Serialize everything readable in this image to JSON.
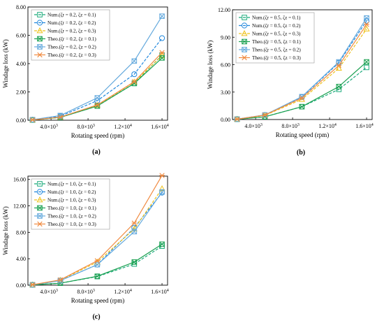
{
  "chart_data": [
    {
      "type": "line",
      "panel_label": "(a)",
      "xlabel": "Rotating speed (rpm)",
      "ylabel": "Windage loss (kW)",
      "xlim": [
        1500,
        16600
      ],
      "ylim": [
        0,
        8
      ],
      "xticks": [
        {
          "v": 4000,
          "m": "4.0×10",
          "e": "3"
        },
        {
          "v": 8000,
          "m": "8.0×10",
          "e": "3"
        },
        {
          "v": 12000,
          "m": "1.2×10",
          "e": "4"
        },
        {
          "v": 16000,
          "m": "1.6×10",
          "e": "4"
        }
      ],
      "yticks": [
        {
          "v": 0,
          "t": "0.00"
        },
        {
          "v": 2,
          "t": "2.00"
        },
        {
          "v": 4,
          "t": "4.00"
        },
        {
          "v": 6,
          "t": "6.00"
        },
        {
          "v": 8,
          "t": "8.00"
        }
      ],
      "x": [
        2000,
        5000,
        9000,
        13000,
        16000
      ],
      "legend_position": "top-left",
      "series": [
        {
          "name": "Num.(ζr = 0.2, ζz = 0.1)",
          "color": "#1aaa7a",
          "marker": "square",
          "dash": "4,2",
          "values": [
            0.02,
            0.2,
            1.0,
            2.6,
            4.6
          ]
        },
        {
          "name": "Num.(ζr = 0.2, ζz = 0.2)",
          "color": "#2288dd",
          "marker": "circle",
          "dash": "4,2",
          "values": [
            0.03,
            0.28,
            1.38,
            3.25,
            5.8
          ]
        },
        {
          "name": "Num.(ζr = 0.2, ζz = 0.3)",
          "color": "#eec21c",
          "marker": "triangle",
          "dash": "4,2",
          "values": [
            0.02,
            0.2,
            1.05,
            2.7,
            4.55
          ]
        },
        {
          "name": "Theo.(ζr = 0.2, ζz = 0.1)",
          "color": "#1aa050",
          "marker": "xbox",
          "dash": "",
          "values": [
            0.02,
            0.2,
            1.0,
            2.6,
            4.4
          ]
        },
        {
          "name": "Theo.(ζr = 0.2, ζz = 0.2)",
          "color": "#66aadd",
          "marker": "xbox",
          "dash": "",
          "values": [
            0.04,
            0.33,
            1.58,
            4.18,
            7.35
          ]
        },
        {
          "name": "Theo.(ζr = 0.2, ζz = 0.3)",
          "color": "#f08a40",
          "marker": "asterisk",
          "dash": "",
          "values": [
            0.02,
            0.22,
            1.08,
            2.72,
            4.78
          ]
        }
      ]
    },
    {
      "type": "line",
      "panel_label": "(b)",
      "xlabel": "Rotating speed (rpm)",
      "ylabel": "Windage loss (kW)",
      "xlim": [
        1500,
        16600
      ],
      "ylim": [
        0,
        12
      ],
      "xticks": [
        {
          "v": 4000,
          "m": "4.0×10",
          "e": "3"
        },
        {
          "v": 8000,
          "m": "8.0×10",
          "e": "3"
        },
        {
          "v": 12000,
          "m": "1.2×10",
          "e": "4"
        },
        {
          "v": 16000,
          "m": "1.6×10",
          "e": "4"
        }
      ],
      "yticks": [
        {
          "v": 0,
          "t": "0.00"
        },
        {
          "v": 3,
          "t": "3.00"
        },
        {
          "v": 6,
          "t": "6.00"
        },
        {
          "v": 9,
          "t": "9.00"
        },
        {
          "v": 12,
          "t": "12.00"
        }
      ],
      "x": [
        2000,
        5000,
        9000,
        13000,
        16000
      ],
      "legend_position": "top-left",
      "series": [
        {
          "name": "Num.(ζr = 0.5, ζz = 0.1)",
          "color": "#1aaa7a",
          "marker": "square",
          "dash": "4,2",
          "values": [
            0.03,
            0.3,
            1.4,
            3.3,
            5.7
          ]
        },
        {
          "name": "Num.(ζr = 0.5, ζz = 0.2)",
          "color": "#2288dd",
          "marker": "circle",
          "dash": "4,2",
          "values": [
            0.04,
            0.5,
            2.45,
            6.2,
            10.8
          ]
        },
        {
          "name": "Num.(ζr = 0.5, ζz = 0.3)",
          "color": "#eec21c",
          "marker": "triangle",
          "dash": "4,2",
          "values": [
            0.04,
            0.45,
            2.2,
            5.6,
            9.9
          ]
        },
        {
          "name": "Theo.(ζr = 0.5, ζz = 0.1)",
          "color": "#1aa050",
          "marker": "xbox",
          "dash": "",
          "values": [
            0.03,
            0.3,
            1.4,
            3.6,
            6.3
          ]
        },
        {
          "name": "Theo.(ζr = 0.5, ζz = 0.2)",
          "color": "#66aadd",
          "marker": "xbox",
          "dash": "",
          "values": [
            0.04,
            0.5,
            2.5,
            6.3,
            11.1
          ]
        },
        {
          "name": "Theo.(ζr = 0.5, ζz = 0.3)",
          "color": "#f08a40",
          "marker": "asterisk",
          "dash": "",
          "values": [
            0.04,
            0.48,
            2.35,
            5.9,
            10.4
          ]
        }
      ]
    },
    {
      "type": "line",
      "panel_label": "(c)",
      "xlabel": "Rotating speed (rpm)",
      "ylabel": "Windage loss (kW)",
      "xlim": [
        1500,
        16600
      ],
      "ylim": [
        0,
        16.5
      ],
      "xticks": [
        {
          "v": 4000,
          "m": "4.0×10",
          "e": "3"
        },
        {
          "v": 8000,
          "m": "8.0×10",
          "e": "3"
        },
        {
          "v": 12000,
          "m": "1.2×10",
          "e": "4"
        },
        {
          "v": 16000,
          "m": "1.6×10",
          "e": "4"
        }
      ],
      "yticks": [
        {
          "v": 0,
          "t": "0.00"
        },
        {
          "v": 4,
          "t": "4.00"
        },
        {
          "v": 8,
          "t": "8.00"
        },
        {
          "v": 12,
          "t": "12.00"
        },
        {
          "v": 16,
          "t": "16.00"
        }
      ],
      "x": [
        2000,
        5000,
        9000,
        13000,
        16000
      ],
      "legend_position": "top-left",
      "series": [
        {
          "name": "Num.(ζr = 1.0, ζz = 0.1)",
          "color": "#1aaa7a",
          "marker": "square",
          "dash": "4,2",
          "values": [
            0.04,
            0.3,
            1.3,
            3.2,
            5.9
          ]
        },
        {
          "name": "Num.(ζr = 1.0, ζz = 0.2)",
          "color": "#2288dd",
          "marker": "circle",
          "dash": "4,2",
          "values": [
            0.05,
            0.7,
            3.1,
            8.7,
            14.0
          ]
        },
        {
          "name": "Num.(ζr = 1.0, ζz = 0.3)",
          "color": "#eec21c",
          "marker": "triangle",
          "dash": "4,2",
          "values": [
            0.06,
            0.75,
            3.5,
            8.5,
            14.6
          ]
        },
        {
          "name": "Theo.(ζr = 1.0, ζz = 0.1)",
          "color": "#1aa050",
          "marker": "xbox",
          "dash": "",
          "values": [
            0.04,
            0.3,
            1.35,
            3.5,
            6.2
          ]
        },
        {
          "name": "Theo.(ζr = 1.0, ζz = 0.2)",
          "color": "#66aadd",
          "marker": "xbox",
          "dash": "",
          "values": [
            0.05,
            0.68,
            3.1,
            8.1,
            14.1
          ]
        },
        {
          "name": "Theo.(ζr = 1.0, ζz = 0.3)",
          "color": "#f08a40",
          "marker": "asterisk",
          "dash": "",
          "values": [
            0.07,
            0.8,
            3.7,
            9.4,
            16.6
          ]
        }
      ]
    }
  ]
}
